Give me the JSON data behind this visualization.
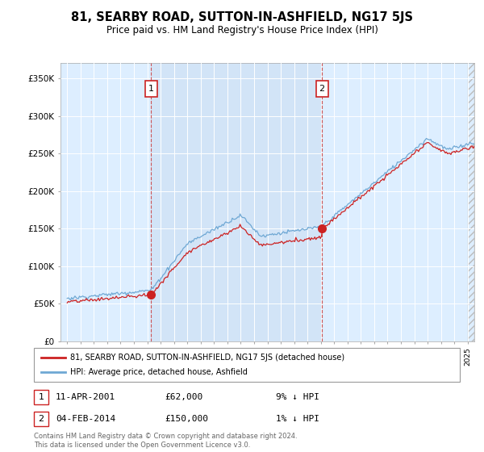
{
  "title": "81, SEARBY ROAD, SUTTON-IN-ASHFIELD, NG17 5JS",
  "subtitle": "Price paid vs. HM Land Registry's House Price Index (HPI)",
  "ytick_values": [
    0,
    50000,
    100000,
    150000,
    200000,
    250000,
    300000,
    350000
  ],
  "ylim": [
    0,
    370000
  ],
  "sale1_date": 2001.28,
  "sale1_price": 62000,
  "sale1_label": "1",
  "sale2_date": 2014.09,
  "sale2_price": 150000,
  "sale2_label": "2",
  "hpi_line_color": "#6fa8d4",
  "price_line_color": "#cc2222",
  "sale_marker_color": "#cc2222",
  "dashed_line_color": "#cc4444",
  "background_fill": "#ddeeff",
  "legend_label_price": "81, SEARBY ROAD, SUTTON-IN-ASHFIELD, NG17 5JS (detached house)",
  "legend_label_hpi": "HPI: Average price, detached house, Ashfield",
  "table_rows": [
    {
      "num": "1",
      "date": "11-APR-2001",
      "price": "£62,000",
      "note": "9% ↓ HPI"
    },
    {
      "num": "2",
      "date": "04-FEB-2014",
      "price": "£150,000",
      "note": "1% ↓ HPI"
    }
  ],
  "footer": "Contains HM Land Registry data © Crown copyright and database right 2024.\nThis data is licensed under the Open Government Licence v3.0.",
  "xlim_start": 1994.5,
  "xlim_end": 2025.5
}
